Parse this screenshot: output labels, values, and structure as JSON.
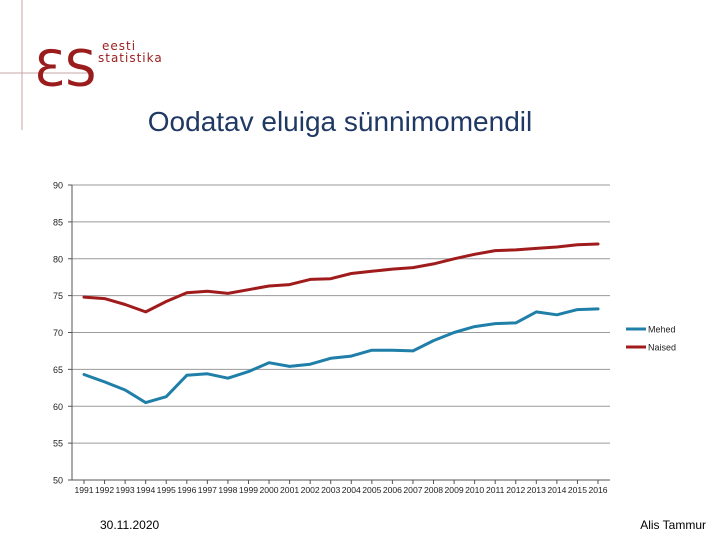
{
  "logo": {
    "mark": "ƐS",
    "line1": "eesti",
    "line2": "statistika"
  },
  "footer": {
    "date": "30.11.2020",
    "author": "Alis Tammur"
  },
  "chart_data": {
    "type": "line",
    "title": "Oodatav eluiga sünnimomendil",
    "xlabel": "",
    "ylabel": "",
    "ylim": [
      50,
      90
    ],
    "yticks": [
      50,
      55,
      60,
      65,
      70,
      75,
      80,
      85,
      90
    ],
    "grid": true,
    "legend": "right",
    "categories": [
      "1991",
      "1992",
      "1993",
      "1994",
      "1995",
      "1996",
      "1997",
      "1998",
      "1999",
      "2000",
      "2001",
      "2002",
      "2003",
      "2004",
      "2005",
      "2006",
      "2007",
      "2008",
      "2009",
      "2010",
      "2011",
      "2012",
      "2013",
      "2014",
      "2015",
      "2016"
    ],
    "series": [
      {
        "name": "Mehed",
        "color": "#1f7fa8",
        "values": [
          64.3,
          63.3,
          62.2,
          60.5,
          61.3,
          64.2,
          64.4,
          63.8,
          64.7,
          65.9,
          65.4,
          65.7,
          66.5,
          66.8,
          67.6,
          67.6,
          67.5,
          68.9,
          70.0,
          70.8,
          71.2,
          71.3,
          72.8,
          72.4,
          73.1,
          73.2
        ]
      },
      {
        "name": "Naised",
        "color": "#a01c1c",
        "values": [
          74.8,
          74.6,
          73.8,
          72.8,
          74.2,
          75.4,
          75.6,
          75.3,
          75.8,
          76.3,
          76.5,
          77.2,
          77.3,
          78.0,
          78.3,
          78.6,
          78.8,
          79.3,
          80.0,
          80.6,
          81.1,
          81.2,
          81.4,
          81.6,
          81.9,
          82.0
        ]
      }
    ]
  }
}
